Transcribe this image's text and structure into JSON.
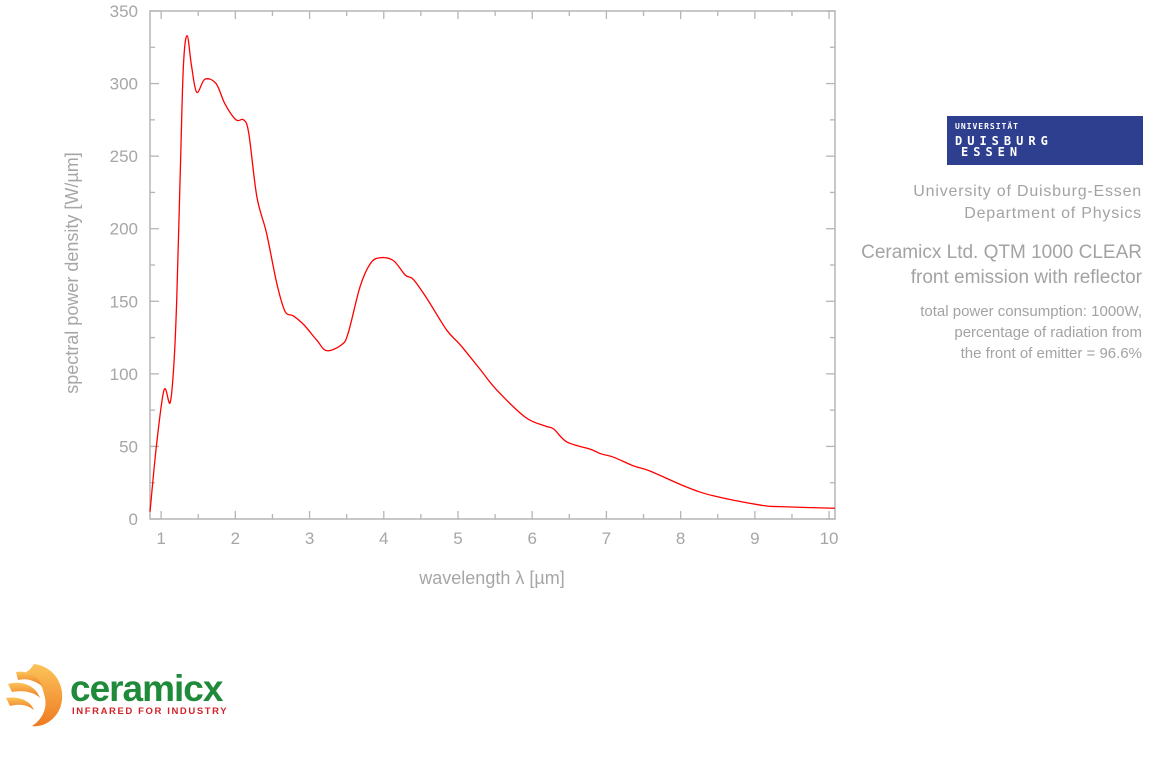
{
  "chart_data": {
    "type": "line",
    "xlabel": "wavelength λ [µm]",
    "ylabel": "spectral power density [W/µm]",
    "xlim": [
      0.85,
      10.08
    ],
    "ylim": [
      0,
      350
    ],
    "xticks": [
      1,
      2,
      3,
      4,
      5,
      6,
      7,
      8,
      9,
      10
    ],
    "yticks": [
      0,
      50,
      100,
      150,
      200,
      250,
      300,
      350
    ],
    "grid": false,
    "series": [
      {
        "color": "#ff0000",
        "x": [
          0.85,
          0.94,
          1.04,
          1.12,
          1.17,
          1.21,
          1.26,
          1.3,
          1.35,
          1.41,
          1.48,
          1.59,
          1.74,
          1.86,
          2.01,
          2.11,
          2.18,
          2.29,
          2.42,
          2.56,
          2.67,
          2.78,
          2.92,
          3.1,
          3.23,
          3.43,
          3.52,
          3.68,
          3.82,
          3.95,
          4.13,
          4.29,
          4.4,
          4.58,
          4.85,
          5.03,
          5.3,
          5.52,
          5.91,
          6.18,
          6.29,
          6.47,
          6.79,
          6.92,
          7.1,
          7.37,
          7.59,
          8.08,
          8.44,
          9.07,
          9.34,
          10.08
        ],
        "y": [
          5,
          52,
          89,
          80,
          105,
          151,
          243,
          312,
          333,
          312,
          294,
          303,
          300,
          286,
          275,
          275,
          266,
          222,
          197,
          162,
          143,
          140,
          134,
          123,
          116,
          120,
          128,
          160,
          176,
          180,
          178,
          168,
          165,
          152,
          130,
          120,
          103,
          89,
          70,
          64,
          62,
          53,
          48,
          45,
          42.5,
          36.5,
          33,
          22,
          16,
          9.6,
          8.5,
          7.4
        ]
      }
    ]
  },
  "info": {
    "logo": {
      "line1": "UNIVERSITÄT",
      "line2": "DUISBURG",
      "line3": "ESSEN",
      "color": "#2e3f8f"
    },
    "university": "University of Duisburg-Essen",
    "department": "Department of Physics",
    "title1": "Ceramicx Ltd. QTM 1000 CLEAR",
    "title2": "front emission with reflector",
    "note1": "total power consumption: 1000W,",
    "note2": "percentage of radiation from",
    "note3": "the front of emitter = 96.6%"
  },
  "ceramicx_logo": {
    "name": "ceramicx",
    "tagline": "INFRARED FOR INDUSTRY",
    "green": "#1e8a3a",
    "red": "#d2232a",
    "orange": "#f39a2e"
  }
}
